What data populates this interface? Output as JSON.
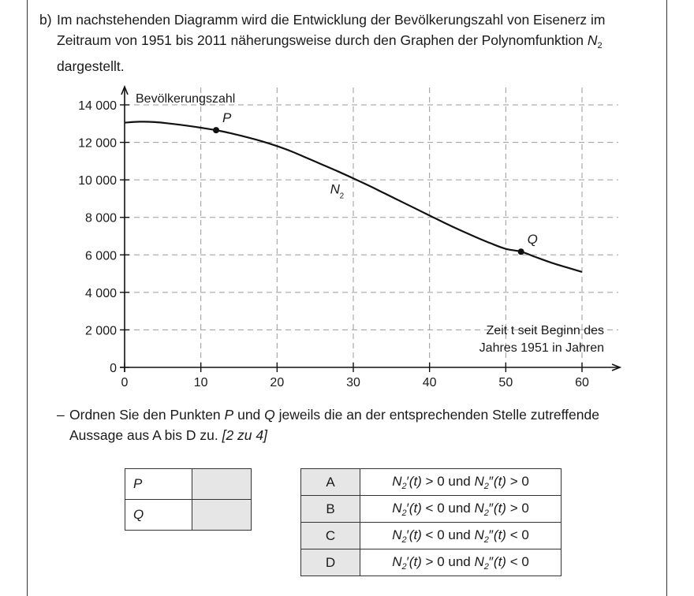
{
  "task": {
    "label": "b)",
    "text_before": "Im nachstehenden Diagramm wird die Entwicklung der Bevölkerungszahl von Eisenerz im Zeitraum von 1951 bis 2011 näherungsweise durch den Graphen der Polynomfunktion ",
    "func_letter": "N",
    "func_sub": "2",
    "text_after": "dargestellt."
  },
  "chart_data": {
    "type": "line",
    "ylabel": "Bevölkerungszahl",
    "xlabel_line1": "Zeit t seit Beginn des",
    "xlabel_line2": "Jahres 1951 in Jahren",
    "xlim": [
      0,
      60
    ],
    "ylim": [
      0,
      14000
    ],
    "x_ticks": [
      0,
      10,
      20,
      30,
      40,
      50,
      60
    ],
    "y_ticks": [
      0,
      2000,
      4000,
      6000,
      8000,
      10000,
      12000,
      14000
    ],
    "y_tick_labels": [
      "0",
      "2 000",
      "4 000",
      "6 000",
      "8 000",
      "10 000",
      "12 000",
      "14 000"
    ],
    "grid": true,
    "series": [
      {
        "name": "N2",
        "x": [
          0,
          2,
          4,
          6,
          8,
          10,
          12,
          14,
          16,
          18,
          20,
          22,
          24,
          26,
          28,
          30,
          32,
          34,
          36,
          38,
          40,
          42,
          44,
          46,
          48,
          50,
          52,
          54,
          56,
          58,
          60
        ],
        "values": [
          13050,
          13100,
          13080,
          13000,
          12900,
          12780,
          12650,
          12480,
          12280,
          12060,
          11800,
          11500,
          11150,
          10800,
          10450,
          10080,
          9700,
          9300,
          8900,
          8500,
          8100,
          7700,
          7320,
          6960,
          6620,
          6320,
          6170,
          5870,
          5580,
          5330,
          5090
        ]
      }
    ],
    "points": [
      {
        "label": "P",
        "x": 12,
        "y": 12650
      },
      {
        "label": "Q",
        "x": 52,
        "y": 6170
      }
    ],
    "curve_label": {
      "letter": "N",
      "sub": "2",
      "x": 28,
      "y": 9100
    }
  },
  "bullet": {
    "dash": "–",
    "text_before": "Ordnen Sie den Punkten ",
    "p": "P",
    "mid": " und ",
    "q": "Q",
    "text_after": " jeweils die an der entsprechenden Stelle zutreffende Aussage aus A bis D zu. ",
    "points_note": "[2 zu 4]"
  },
  "pq_table": [
    {
      "label": "P"
    },
    {
      "label": "Q"
    }
  ],
  "options": [
    {
      "letter": "A",
      "d1": "′",
      "r1": " > 0",
      "d2": "″",
      "r2": " > 0"
    },
    {
      "letter": "B",
      "d1": "′",
      "r1": " < 0",
      "d2": "″",
      "r2": " > 0"
    },
    {
      "letter": "C",
      "d1": "′",
      "r1": " < 0",
      "d2": "″",
      "r2": " < 0"
    },
    {
      "letter": "D",
      "d1": "′",
      "r1": " > 0",
      "d2": "″",
      "r2": " < 0"
    }
  ],
  "option_parts": {
    "n": "N",
    "sub": "2",
    "arg": "(t)",
    "und": " und "
  }
}
